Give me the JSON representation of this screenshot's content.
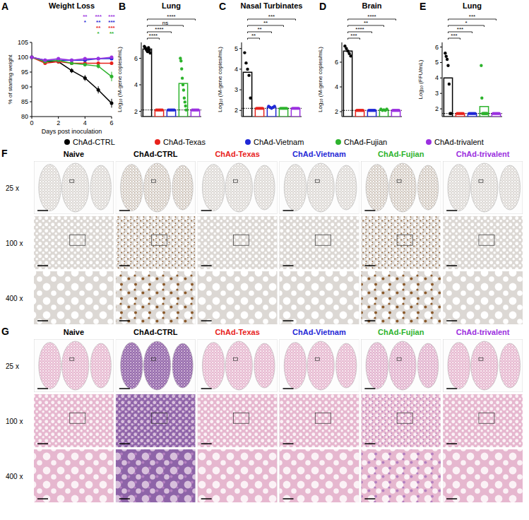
{
  "chart_data": [
    {
      "panel": "A",
      "type": "line",
      "title": "Weight Loss",
      "x_label": "Days post inoculation",
      "y_label": "% of starting weight",
      "x": [
        0,
        1,
        2,
        3,
        4,
        5,
        6
      ],
      "xlim": [
        0,
        6
      ],
      "xticks": [
        0,
        2,
        4,
        6
      ],
      "ylim": [
        80,
        105
      ],
      "yticks": [
        80,
        85,
        90,
        95,
        100,
        105
      ],
      "marker": "circle",
      "legend": "bottom",
      "series": [
        {
          "name": "ChAd-CTRL",
          "color": "#000000",
          "values": [
            100,
            98.5,
            98.5,
            95.5,
            93,
            89,
            84.5
          ],
          "errors": [
            0,
            0.5,
            0.6,
            0.8,
            1.0,
            1.2,
            1.5
          ]
        },
        {
          "name": "ChAd-Texas",
          "color": "#e8221c",
          "values": [
            100,
            98,
            98.5,
            98,
            98,
            98,
            98
          ],
          "errors": [
            0,
            0.4,
            0.4,
            0.5,
            0.5,
            0.6,
            0.6
          ]
        },
        {
          "name": "ChAd-Vietnam",
          "color": "#1f28d6",
          "values": [
            100,
            99,
            99,
            99,
            99,
            99.5,
            99.5
          ],
          "errors": [
            0,
            0.3,
            0.3,
            0.4,
            0.4,
            0.4,
            0.4
          ]
        },
        {
          "name": "ChAd-Fujian",
          "color": "#2db32d",
          "values": [
            100,
            98.5,
            99,
            98,
            97.5,
            97,
            93.5
          ],
          "errors": [
            0,
            0.4,
            0.4,
            0.5,
            0.6,
            0.8,
            1.6
          ]
        },
        {
          "name": "ChAd-trivalent",
          "color": "#9b30e0",
          "values": [
            100,
            99,
            99.5,
            99,
            99.5,
            99.5,
            100
          ],
          "errors": [
            0,
            0.3,
            0.3,
            0.3,
            0.3,
            0.3,
            0.3
          ]
        }
      ],
      "annotations": [
        {
          "series": "ChAd-trivalent",
          "labels": [
            null,
            null,
            null,
            null,
            "**",
            "***",
            "***"
          ]
        },
        {
          "series": "ChAd-Vietnam",
          "labels": [
            null,
            null,
            null,
            null,
            "*",
            "**",
            "***"
          ]
        },
        {
          "series": "ChAd-Texas",
          "labels": [
            null,
            null,
            null,
            null,
            null,
            "**",
            "***"
          ]
        },
        {
          "series": "ChAd-Fujian",
          "labels": [
            null,
            null,
            null,
            null,
            null,
            "*",
            "**"
          ]
        }
      ]
    },
    {
      "panel": "B",
      "type": "bar",
      "title": "Lung",
      "y_label": "Log₁₀ (M-gene copies/mL)",
      "tick_labels": "y",
      "categories": [
        "ChAd-CTRL",
        "ChAd-Texas",
        "ChAd-Vietnam",
        "ChAd-Fujian",
        "ChAd-trivalent"
      ],
      "colors": [
        "#000000",
        "#e8221c",
        "#1f28d6",
        "#2db32d",
        "#9b30e0"
      ],
      "values": [
        6.7,
        2.1,
        2.1,
        4.1,
        2.1
      ],
      "points": [
        [
          6.9,
          6.8,
          6.7,
          6.6,
          6.5,
          6.8,
          6.6,
          6.4
        ],
        [
          2.1,
          2.1,
          2.1,
          2.1,
          2.1
        ],
        [
          2.1,
          2.1,
          2.1,
          2.1,
          2.1
        ],
        [
          6.0,
          5.8,
          5.2,
          4.5,
          4.0,
          3.6,
          3.0,
          2.7,
          2.4,
          2.1
        ],
        [
          2.1,
          2.1,
          2.1,
          2.1,
          2.1
        ]
      ],
      "detection_limit": 2.1,
      "ylim": [
        1.6,
        7.2
      ],
      "yticks": [
        2,
        4,
        6
      ],
      "comparisons": [
        {
          "groups": [
            "ChAd-CTRL",
            "ChAd-Texas"
          ],
          "label": "****"
        },
        {
          "groups": [
            "ChAd-CTRL",
            "ChAd-Vietnam"
          ],
          "label": "****"
        },
        {
          "groups": [
            "ChAd-CTRL",
            "ChAd-Fujian"
          ],
          "label": "ns"
        },
        {
          "groups": [
            "ChAd-CTRL",
            "ChAd-trivalent"
          ],
          "label": "****"
        }
      ]
    },
    {
      "panel": "C",
      "type": "bar",
      "title": "Nasal Turbinates",
      "y_label": "Log₁₀ (M-gene copies/mL)",
      "tick_labels": "y",
      "categories": [
        "ChAd-CTRL",
        "ChAd-Texas",
        "ChAd-Vietnam",
        "ChAd-Fujian",
        "ChAd-trivalent"
      ],
      "colors": [
        "#000000",
        "#e8221c",
        "#1f28d6",
        "#2db32d",
        "#9b30e0"
      ],
      "values": [
        3.85,
        2.1,
        2.15,
        2.1,
        2.1
      ],
      "points": [
        [
          4.8,
          4.3,
          4.0,
          3.7,
          2.6
        ],
        [
          2.1,
          2.1,
          2.1,
          2.1,
          2.1
        ],
        [
          2.2,
          2.15,
          2.1,
          2.15,
          2.2
        ],
        [
          2.1,
          2.1,
          2.1,
          2.1,
          2.1
        ],
        [
          2.1,
          2.1,
          2.1,
          2.1,
          2.1
        ]
      ],
      "detection_limit": 2.1,
      "ylim": [
        1.7,
        5.3
      ],
      "yticks": [
        2,
        3,
        4,
        5
      ],
      "comparisons": [
        {
          "groups": [
            "ChAd-CTRL",
            "ChAd-Texas"
          ],
          "label": "**"
        },
        {
          "groups": [
            "ChAd-CTRL",
            "ChAd-Vietnam"
          ],
          "label": "**"
        },
        {
          "groups": [
            "ChAd-CTRL",
            "ChAd-Fujian"
          ],
          "label": "**"
        },
        {
          "groups": [
            "ChAd-CTRL",
            "ChAd-trivalent"
          ],
          "label": "***"
        }
      ]
    },
    {
      "panel": "D",
      "type": "bar",
      "title": "Brain",
      "y_label": "Log₁₀ (M-gene copies/mL)",
      "tick_labels": "y",
      "categories": [
        "ChAd-CTRL",
        "ChAd-Texas",
        "ChAd-Vietnam",
        "ChAd-Fujian",
        "ChAd-trivalent"
      ],
      "colors": [
        "#000000",
        "#e8221c",
        "#1f28d6",
        "#2db32d",
        "#9b30e0"
      ],
      "values": [
        6.9,
        2.1,
        2.1,
        2.15,
        2.1
      ],
      "points": [
        [
          7.3,
          7.1,
          6.9,
          6.7,
          6.5
        ],
        [
          2.1,
          2.1,
          2.1,
          2.1,
          2.1
        ],
        [
          2.1,
          2.1,
          2.1,
          2.1,
          2.1
        ],
        [
          2.2,
          2.1,
          2.15,
          2.1,
          2.2
        ],
        [
          2.1,
          2.1,
          2.1,
          2.1,
          2.1
        ]
      ],
      "detection_limit": 2.1,
      "ylim": [
        1.6,
        7.6
      ],
      "yticks": [
        2,
        4,
        6
      ],
      "comparisons": [
        {
          "groups": [
            "ChAd-CTRL",
            "ChAd-Texas"
          ],
          "label": "***"
        },
        {
          "groups": [
            "ChAd-CTRL",
            "ChAd-Vietnam"
          ],
          "label": "****"
        },
        {
          "groups": [
            "ChAd-CTRL",
            "ChAd-Fujian"
          ],
          "label": "**"
        },
        {
          "groups": [
            "ChAd-CTRL",
            "ChAd-trivalent"
          ],
          "label": "****"
        }
      ]
    },
    {
      "panel": "E",
      "type": "bar",
      "title": "Lung",
      "y_label": "Log₁₀ (FFU/mL)",
      "tick_labels": "y",
      "categories": [
        "ChAd-CTRL",
        "ChAd-Texas",
        "ChAd-Vietnam",
        "ChAd-Fujian",
        "ChAd-trivalent"
      ],
      "colors": [
        "#000000",
        "#e8221c",
        "#1f28d6",
        "#2db32d",
        "#9b30e0"
      ],
      "values": [
        4.0,
        1.7,
        1.7,
        2.15,
        1.7
      ],
      "points": [
        [
          5.6,
          5.4,
          5.2,
          4.8,
          3.6,
          1.7,
          1.7
        ],
        [
          1.7,
          1.7,
          1.7,
          1.7,
          1.7
        ],
        [
          1.7,
          1.7,
          1.7,
          1.7,
          1.7
        ],
        [
          4.8,
          2.7,
          1.7,
          1.7,
          1.7,
          1.7,
          1.7,
          1.7,
          1.7,
          1.7
        ],
        [
          1.7,
          1.7,
          1.7,
          1.7,
          1.7
        ]
      ],
      "detection_limit": 1.7,
      "ylim": [
        1.5,
        6.3
      ],
      "yticks": [
        2,
        3,
        4,
        5,
        6
      ],
      "comparisons": [
        {
          "groups": [
            "ChAd-CTRL",
            "ChAd-Texas"
          ],
          "label": "***"
        },
        {
          "groups": [
            "ChAd-CTRL",
            "ChAd-Vietnam"
          ],
          "label": "***"
        },
        {
          "groups": [
            "ChAd-CTRL",
            "ChAd-Fujian"
          ],
          "label": "*"
        },
        {
          "groups": [
            "ChAd-CTRL",
            "ChAd-trivalent"
          ],
          "label": "***"
        }
      ]
    }
  ],
  "histology": [
    {
      "panel": "F",
      "columns": [
        {
          "label": "Naive",
          "color": "#000000"
        },
        {
          "label": "ChAd-CTRL",
          "color": "#000000"
        },
        {
          "label": "ChAd-Texas",
          "color": "#e8221c"
        },
        {
          "label": "ChAd-Vietnam",
          "color": "#1f28d6"
        },
        {
          "label": "ChAd-Fujian",
          "color": "#2db32d"
        },
        {
          "label": "ChAd-trivalent",
          "color": "#9b30e0"
        }
      ],
      "rows": [
        "25 x",
        "100 x",
        "400 x"
      ]
    },
    {
      "panel": "G",
      "columns": [
        {
          "label": "Naive",
          "color": "#000000"
        },
        {
          "label": "ChAd-CTRL",
          "color": "#000000"
        },
        {
          "label": "ChAd-Texas",
          "color": "#e8221c"
        },
        {
          "label": "ChAd-Vietnam",
          "color": "#1f28d6"
        },
        {
          "label": "ChAd-Fujian",
          "color": "#2db32d"
        },
        {
          "label": "ChAd-trivalent",
          "color": "#9b30e0"
        }
      ],
      "rows": [
        "25 x",
        "100 x",
        "400 x"
      ]
    }
  ]
}
